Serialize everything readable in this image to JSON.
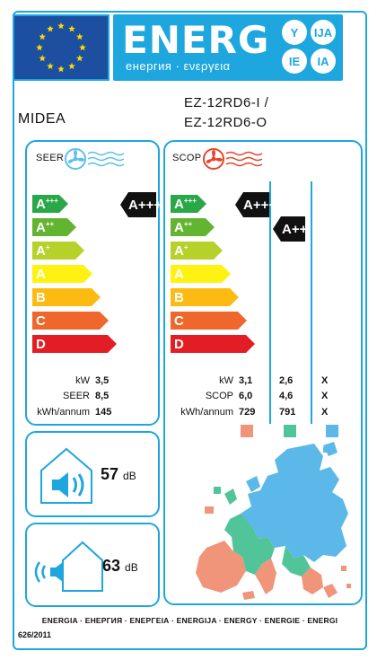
{
  "header": {
    "energ_word": "ENERG",
    "energ_sub": "енергия · ενεργεια",
    "lang_badges": [
      "Y",
      "IJA",
      "IE",
      "IA"
    ]
  },
  "supplier": "MIDEA",
  "models": [
    "EZ-12RD6-I /",
    "EZ-12RD6-O"
  ],
  "seer_panel": {
    "title": "SEER",
    "classes": [
      "A+++",
      "A++",
      "A+",
      "A",
      "B",
      "C",
      "D"
    ],
    "class_colors": [
      "#2aa848",
      "#63b531",
      "#b7d12b",
      "#fff212",
      "#fbbb13",
      "#f0672d",
      "#e31d24"
    ],
    "rating": "A+++",
    "rows": [
      {
        "key": "kW",
        "value": "3,5"
      },
      {
        "key": "SEER",
        "value": "8,5"
      },
      {
        "key": "kWh/annum",
        "value": "145"
      }
    ]
  },
  "scop_panel": {
    "title": "SCOP",
    "rating_primary": "A+++",
    "rating_secondary": "A++",
    "rows": [
      {
        "key": "kW",
        "values": [
          "3,1",
          "2,6",
          "X"
        ]
      },
      {
        "key": "SCOP",
        "values": [
          "6,0",
          "4,6",
          "X"
        ]
      },
      {
        "key": "kWh/annum",
        "values": [
          "729",
          "791",
          "X"
        ]
      }
    ],
    "zone_colors": [
      "#f0957a",
      "#52c49a",
      "#5cb8e8"
    ]
  },
  "noise_indoor": {
    "value": "57",
    "unit": "dB"
  },
  "noise_outdoor": {
    "value": "63",
    "unit": "dB"
  },
  "footer": {
    "languages": "ENERGIA · ЕНЕРГИЯ · ΕΝΕΡΓΕΙΑ · ENERGIJA · ENERGY · ENERGIE · ENERGI",
    "regulation": "626/2011"
  },
  "colors": {
    "frame_blue": "#1ea6df",
    "eu_blue": "#1d4fa0",
    "eu_star": "#ffdd00",
    "rating_black": "#111111"
  }
}
